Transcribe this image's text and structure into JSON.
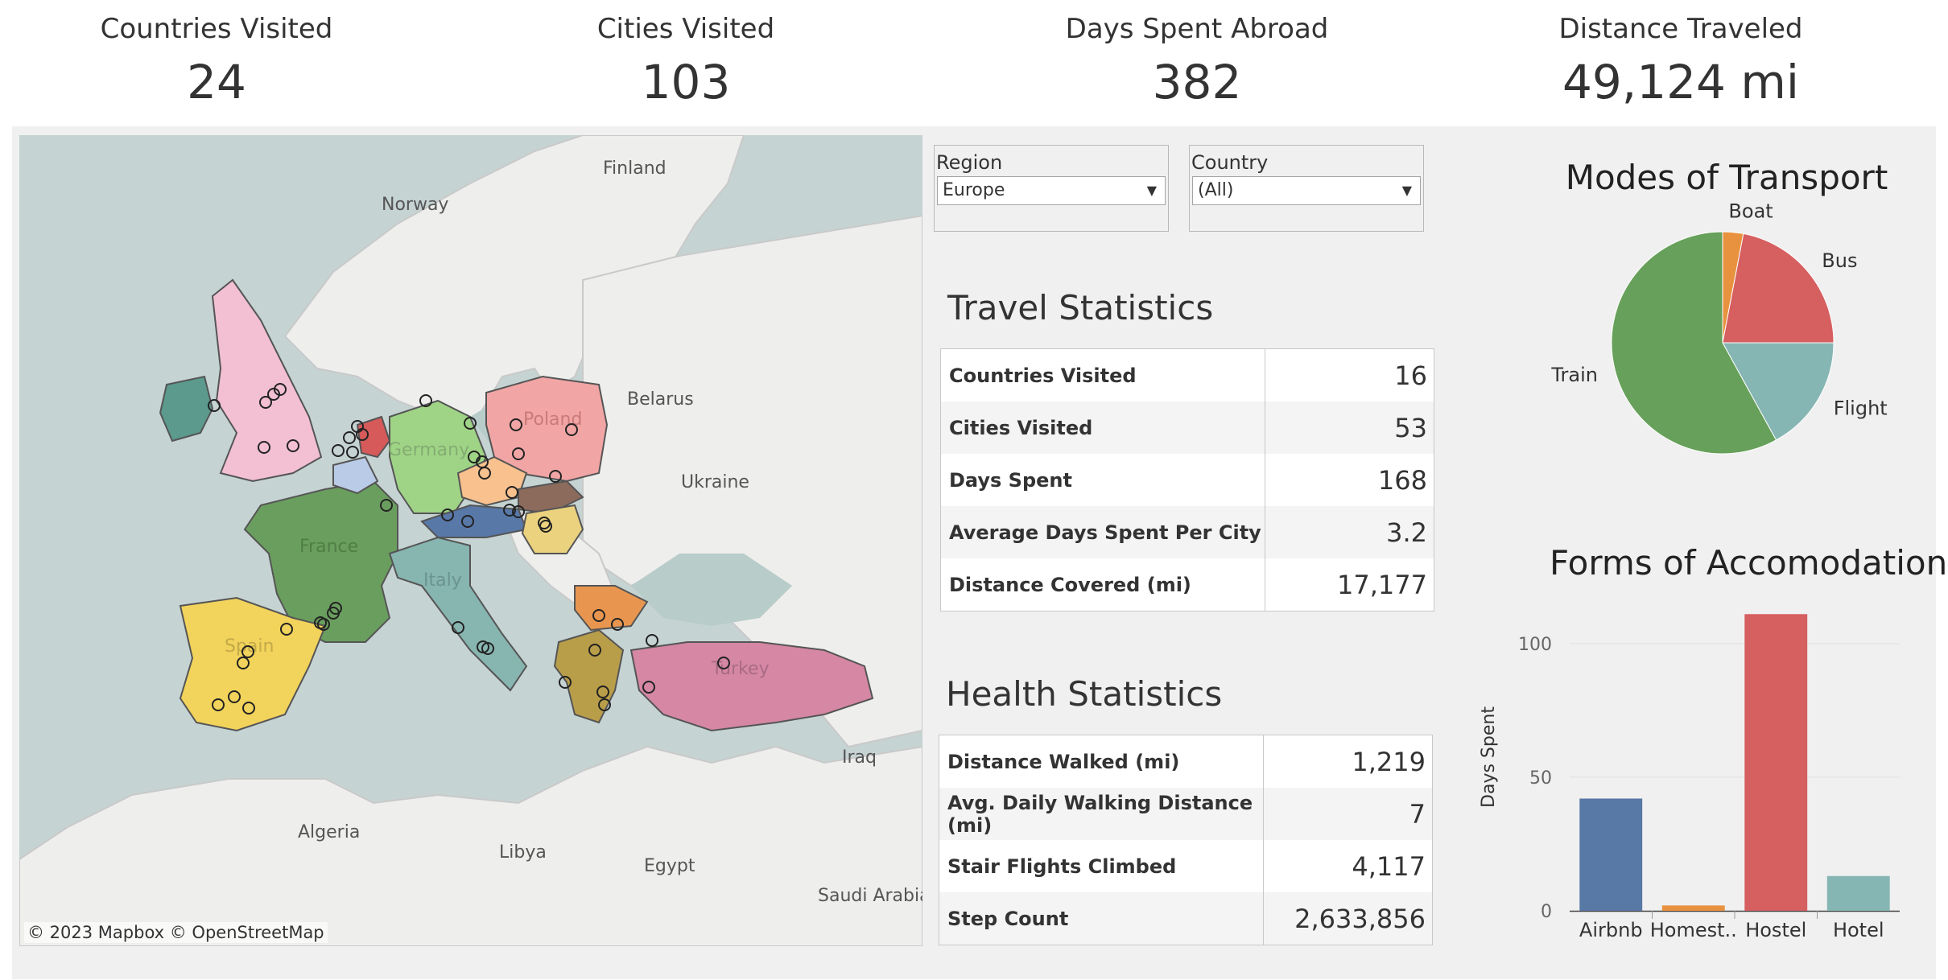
{
  "kpis": [
    {
      "label": "Countries Visited",
      "value": "24"
    },
    {
      "label": "Cities Visited",
      "value": "103"
    },
    {
      "label": "Days Spent Abroad",
      "value": "382"
    },
    {
      "label": "Distance Traveled",
      "value": "49,124 mi"
    }
  ],
  "map": {
    "attribution": "© 2023 Mapbox  © OpenStreetMap",
    "labels": [
      "Finland",
      "Norway",
      "Belarus",
      "Ukraine",
      "Poland",
      "Germany",
      "France",
      "Italy",
      "Spain",
      "Turkey",
      "Iraq",
      "Algeria",
      "Libya",
      "Egypt",
      "Saudi Arabia"
    ],
    "country_colors": {
      "ireland": "#5b9a8d",
      "uk": "#f2c0d2",
      "netherlands": "#d65a5a",
      "belgium": "#b9cbe6",
      "germany": "#9fd486",
      "poland": "#f2a5a5",
      "czechia": "#f8c18e",
      "slovakia": "#8c6b5d",
      "austria": "#5878a8",
      "hungary": "#ebd27e",
      "france": "#6a9e5e",
      "italy": "#87b5b0",
      "spain": "#f2d35b",
      "bulgaria": "#e8964f",
      "greece": "#b99e4a",
      "turkey": "#d587a3"
    }
  },
  "filters": {
    "region": {
      "label": "Region",
      "value": "Europe"
    },
    "country": {
      "label": "Country",
      "value": "(All)"
    }
  },
  "travel_stats": {
    "title": "Travel Statistics",
    "rows": [
      {
        "label": "Countries Visited",
        "value": "16"
      },
      {
        "label": "Cities Visited",
        "value": "53"
      },
      {
        "label": "Days Spent",
        "value": "168"
      },
      {
        "label": "Average Days Spent Per City",
        "value": "3.2"
      },
      {
        "label": "Distance Covered (mi)",
        "value": "17,177"
      }
    ]
  },
  "health_stats": {
    "title": "Health Statistics",
    "rows": [
      {
        "label": "Distance Walked (mi)",
        "value": "1,219"
      },
      {
        "label": "Avg. Daily Walking Distance (mi)",
        "value": "7"
      },
      {
        "label": "Stair Flights Climbed",
        "value": "4,117"
      },
      {
        "label": "Step Count",
        "value": "2,633,856"
      }
    ]
  },
  "chart_data": [
    {
      "type": "pie",
      "title": "Modes of Transport",
      "slices": [
        {
          "label": "Boat",
          "value": 3,
          "color": "#e8923f"
        },
        {
          "label": "Bus",
          "value": 22,
          "color": "#d65f5f"
        },
        {
          "label": "Flight",
          "value": 17,
          "color": "#86b6b4"
        },
        {
          "label": "Train",
          "value": 58,
          "color": "#67a05a"
        }
      ]
    },
    {
      "type": "bar",
      "title": "Forms of Accomodation",
      "ylabel": "Days Spent",
      "xlabel": "",
      "categories": [
        "Airbnb",
        "Homest..",
        "Hostel",
        "Hotel"
      ],
      "values": [
        42,
        2,
        111,
        13
      ],
      "colors": [
        "#5878a6",
        "#e8923f",
        "#d65f5f",
        "#86b6b4"
      ],
      "ylim": [
        0,
        115
      ],
      "yticks": [
        0,
        50,
        100
      ],
      "grid": true
    }
  ]
}
